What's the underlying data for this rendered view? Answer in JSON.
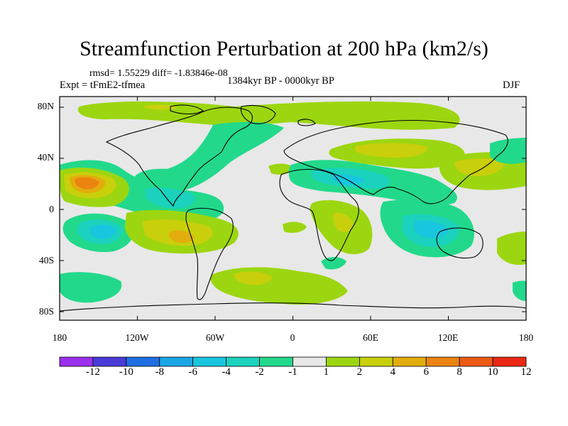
{
  "title": "Streamfunction Perturbation at 200 hPa (km2/s)",
  "stats": "rmsd= 1.55229 diff= -1.83846e-08",
  "experiment": "Expt = tFmE2-tfmea",
  "period": "1384kyr BP - 0000kyr BP",
  "season": "DJF",
  "map": {
    "lat_ticks": [
      "80N",
      "40N",
      "0",
      "40S",
      "80S"
    ],
    "lon_ticks": [
      "180",
      "120W",
      "60W",
      "0",
      "60E",
      "120E",
      "180"
    ]
  },
  "colorbar": {
    "labels": [
      "-12",
      "-10",
      "-8",
      "-6",
      "-4",
      "-2",
      "-1",
      "1",
      "2",
      "4",
      "6",
      "8",
      "10",
      "12"
    ],
    "colors": [
      "#9a31ee",
      "#4a3bd8",
      "#1f6fe2",
      "#1aa6e6",
      "#18c6df",
      "#1ad2bd",
      "#22d98b",
      "#e8e8e8",
      "#9cd610",
      "#c9cf0b",
      "#e2ad0d",
      "#eb8410",
      "#ec5a14",
      "#ea2814"
    ]
  }
}
